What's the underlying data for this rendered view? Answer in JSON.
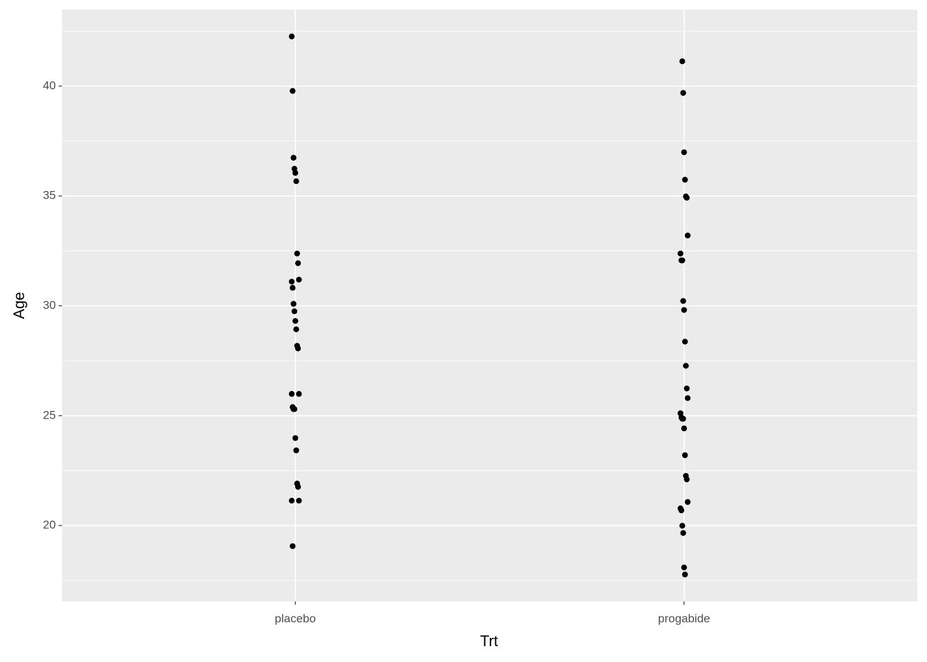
{
  "chart_data": {
    "type": "strip",
    "x_label": "Trt",
    "y_label": "Age",
    "categories": [
      "placebo",
      "progabide"
    ],
    "values": [
      [
        42.26,
        39.78,
        36.74,
        36.24,
        36.05,
        35.67,
        32.38,
        31.94,
        31.19,
        31.1,
        30.82,
        30.09,
        29.75,
        29.31,
        28.93,
        28.18,
        28.06,
        25.99,
        25.99,
        25.39,
        25.3,
        25.3,
        23.98,
        23.42,
        21.91,
        21.76,
        21.13,
        21.13,
        19.06
      ],
      [
        41.13,
        39.69,
        36.99,
        35.74,
        34.98,
        34.92,
        33.2,
        32.38,
        32.07,
        32.07,
        30.22,
        29.81,
        28.37,
        27.27,
        26.24,
        25.8,
        25.11,
        24.92,
        24.86,
        24.86,
        24.42,
        23.2,
        22.26,
        22.1,
        21.07,
        20.78,
        20.69,
        19.99,
        19.66,
        18.09,
        17.77
      ]
    ],
    "color": "#000000",
    "ylim": [
      16.55,
      43.48
    ],
    "yticks": [
      20,
      25,
      30,
      35,
      40
    ],
    "grid": true
  }
}
